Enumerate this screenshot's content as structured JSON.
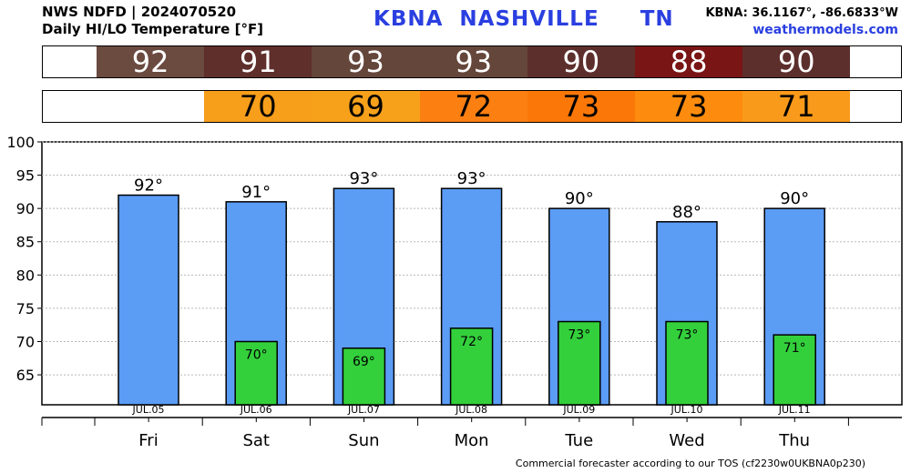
{
  "header": {
    "line1": "NWS NDFD | 2024070520",
    "line2": "Daily HI/LO Temperature [°F]",
    "station_title": "KBNA  NASHVILLE     TN",
    "coords": "KBNA: 36.1167°, -86.6833°W",
    "site": "weathermodels.com"
  },
  "hi_strip": [
    {
      "text": "92",
      "color": "#6b4a40"
    },
    {
      "text": "91",
      "color": "#5f2f2c"
    },
    {
      "text": "93",
      "color": "#65463b"
    },
    {
      "text": "93",
      "color": "#65463b"
    },
    {
      "text": "90",
      "color": "#5d2f2c"
    },
    {
      "text": "88",
      "color": "#7a1515"
    },
    {
      "text": "90",
      "color": "#5d2f2c"
    }
  ],
  "lo_strip": [
    {
      "text": "",
      "color": "#ffffff"
    },
    {
      "text": "70",
      "color": "#f79e1b"
    },
    {
      "text": "69",
      "color": "#f7a11b"
    },
    {
      "text": "72",
      "color": "#fb7f11"
    },
    {
      "text": "73",
      "color": "#fb7708"
    },
    {
      "text": "73",
      "color": "#fd8c0e"
    },
    {
      "text": "71",
      "color": "#f99a1a"
    }
  ],
  "chart_data": {
    "type": "bar",
    "categories": [
      "Fri",
      "Sat",
      "Sun",
      "Mon",
      "Tue",
      "Wed",
      "Thu"
    ],
    "dates": [
      "JUL.05",
      "JUL.06",
      "JUL.07",
      "JUL.08",
      "JUL.09",
      "JUL.10",
      "JUL.11"
    ],
    "series": [
      {
        "values": [
          92,
          91,
          93,
          93,
          90,
          88,
          90
        ],
        "labels": [
          "92°",
          "91°",
          "93°",
          "93°",
          "90°",
          "88°",
          "90°"
        ],
        "color": "#5b9cf5"
      },
      {
        "values": [
          null,
          70,
          69,
          72,
          73,
          73,
          71
        ],
        "labels": [
          "",
          "70°",
          "69°",
          "72°",
          "73°",
          "73°",
          "71°"
        ],
        "color": "#33d03c"
      }
    ],
    "yticks": [
      65,
      70,
      75,
      80,
      85,
      90,
      95,
      100
    ],
    "ylim": [
      60.5,
      100
    ],
    "grid": true
  },
  "footer": "Commercial forecaster according to our TOS (cf2230w0UKBNA0p230)"
}
